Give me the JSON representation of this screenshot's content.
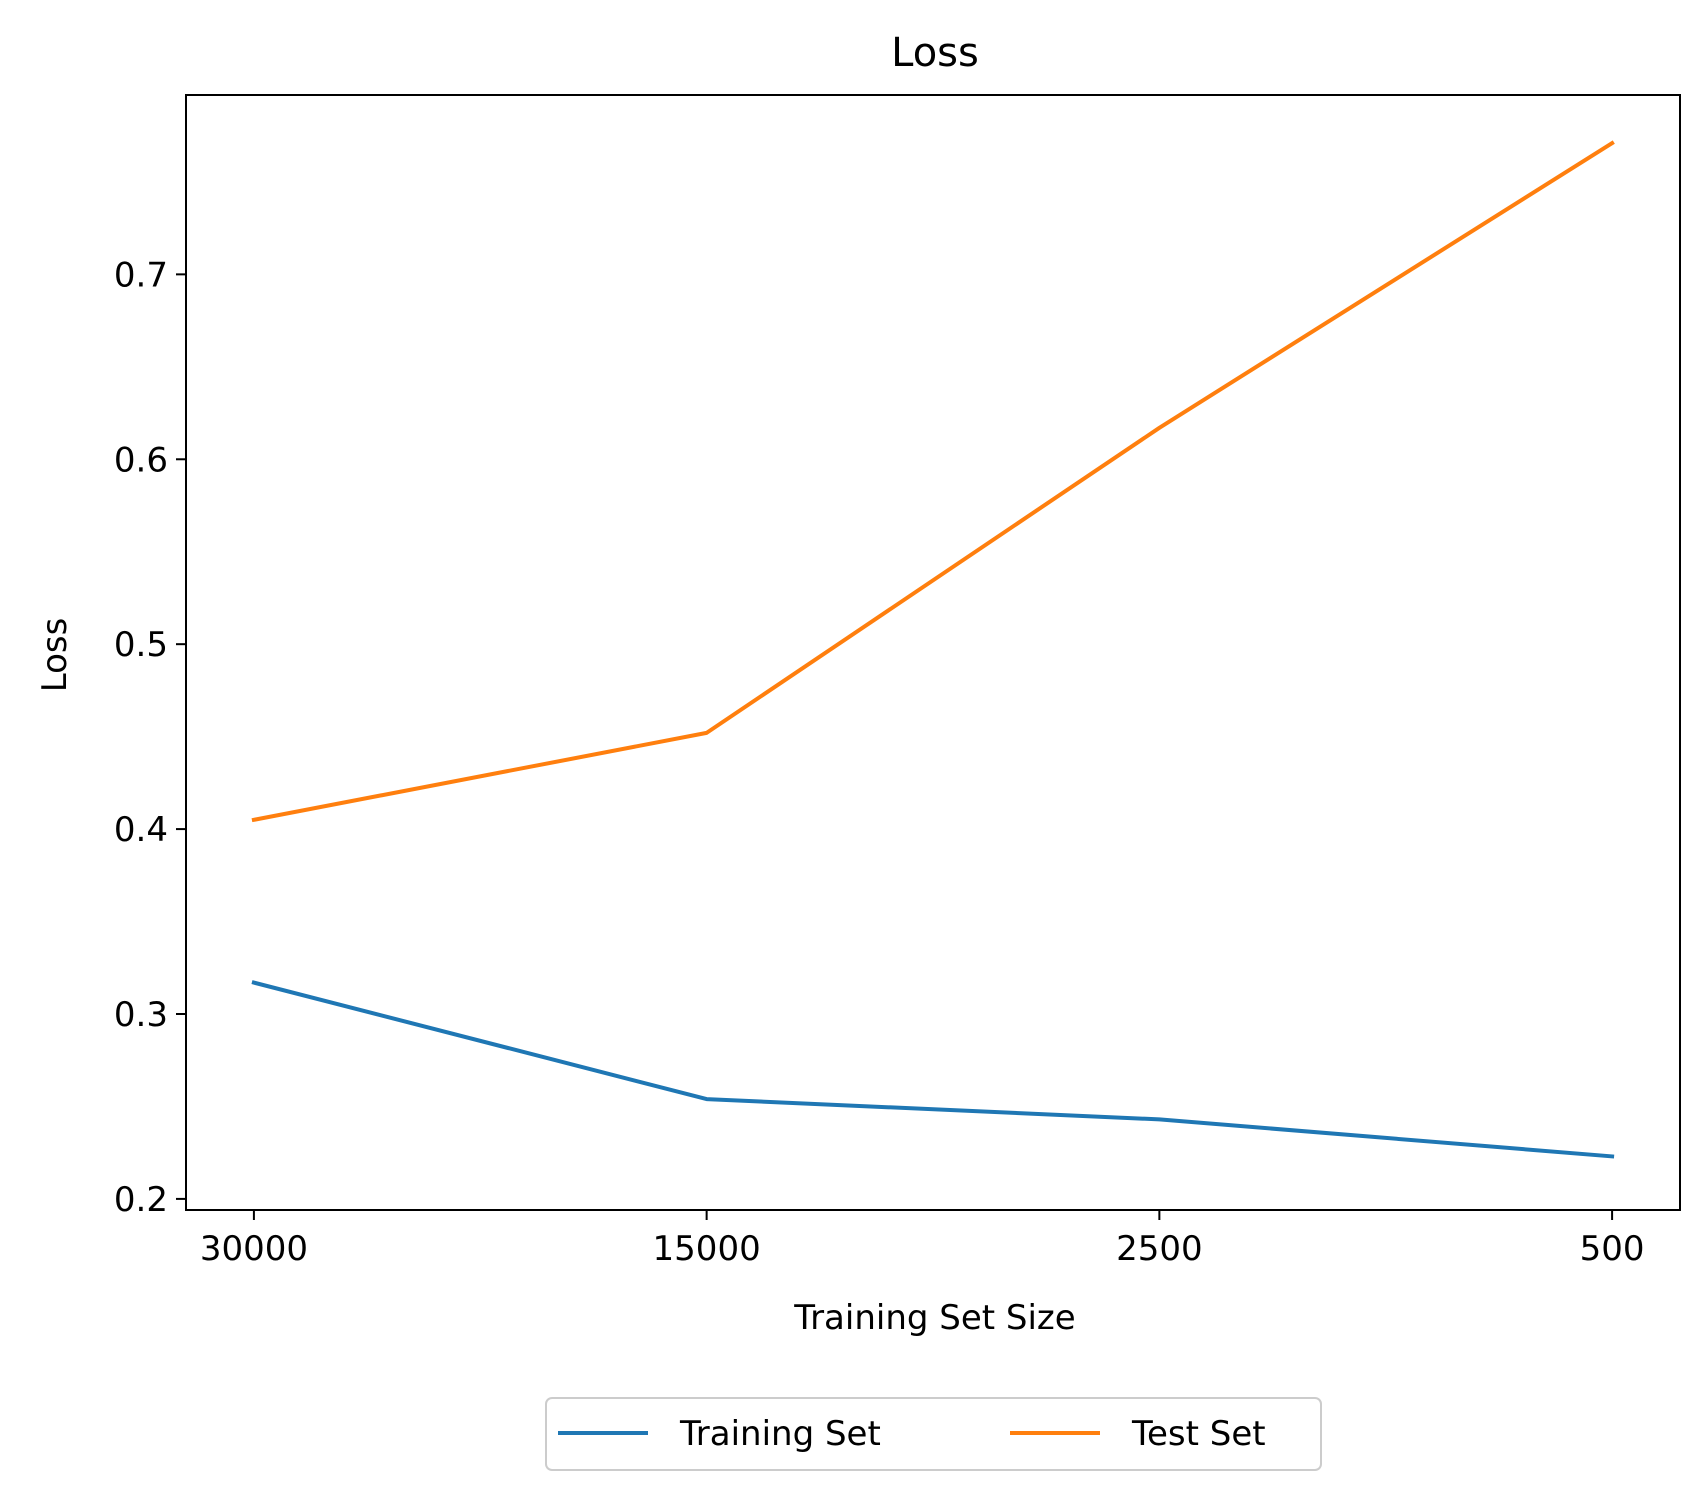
{
  "chart_data": {
    "type": "line",
    "title": "Loss",
    "xlabel": "Training Set Size",
    "ylabel": "Loss",
    "categories": [
      "30000",
      "15000",
      "2500",
      "500"
    ],
    "series": [
      {
        "name": "Training Set",
        "color": "#1f77b4",
        "values": [
          0.317,
          0.254,
          0.243,
          0.223
        ]
      },
      {
        "name": "Test Set",
        "color": "#ff7f0e",
        "values": [
          0.405,
          0.452,
          0.617,
          0.771
        ]
      }
    ],
    "ylim": [
      0.194,
      0.797
    ],
    "yticks": [
      "0.2",
      "0.3",
      "0.4",
      "0.5",
      "0.6",
      "0.7"
    ],
    "grid": false,
    "legend_position": "bottom-center"
  }
}
